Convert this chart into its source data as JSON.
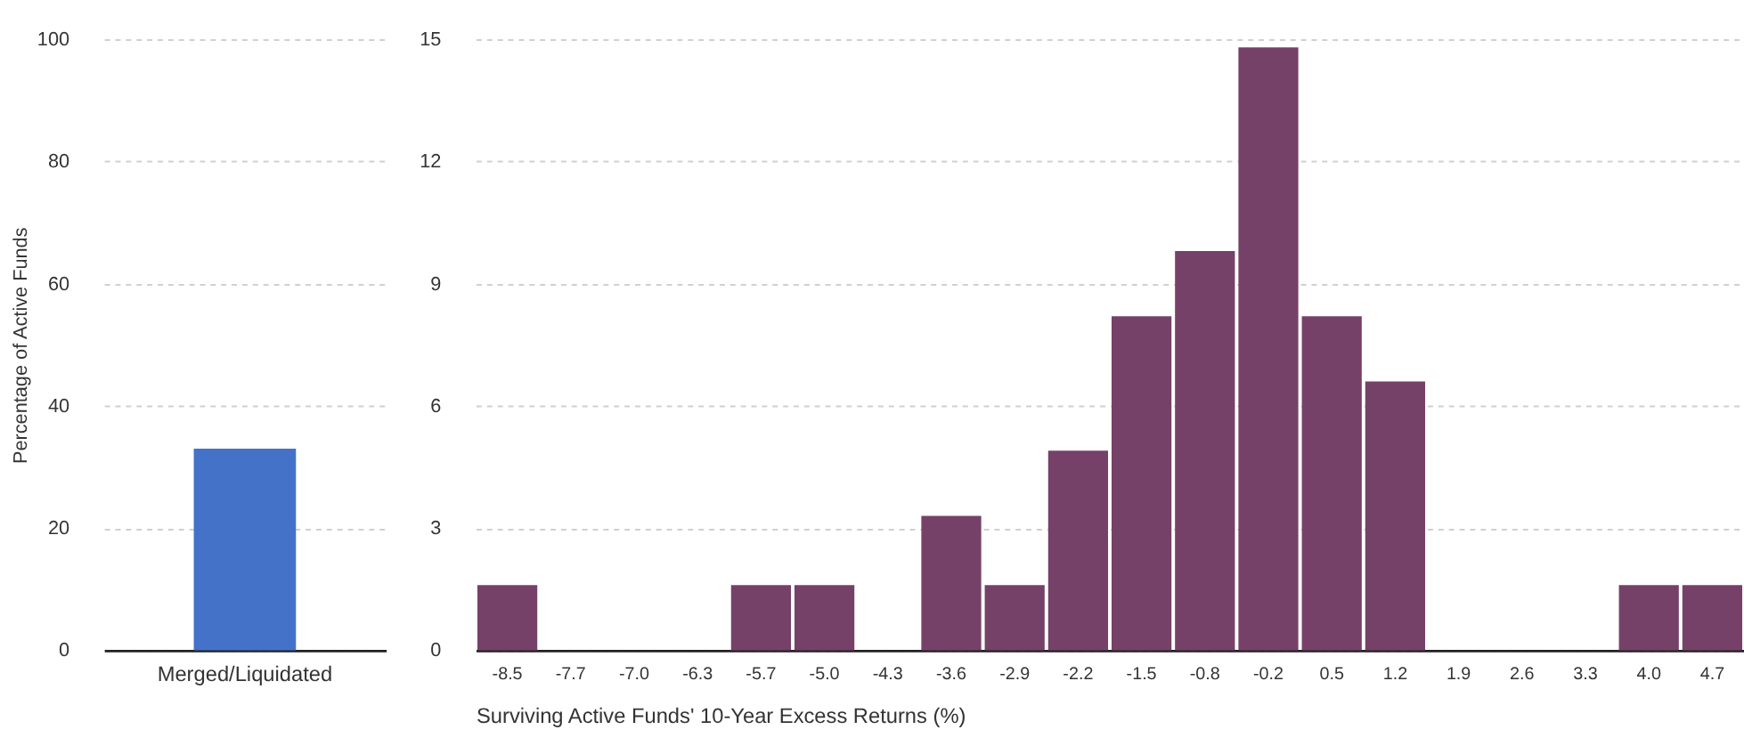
{
  "chart_data": [
    {
      "type": "bar",
      "categories": [
        "Merged/Liquidated"
      ],
      "values": [
        33
      ],
      "color": "#4472c8",
      "ylim": [
        0,
        100
      ],
      "yticks": [
        0,
        20,
        40,
        60,
        80,
        100
      ],
      "grid": "y",
      "ylabel": "Percentage of Active Funds"
    },
    {
      "type": "bar",
      "categories": [
        "-8.5",
        "-7.7",
        "-7.0",
        "-6.3",
        "-5.7",
        "-5.0",
        "-4.3",
        "-3.6",
        "-2.9",
        "-2.2",
        "-1.5",
        "-0.8",
        "-0.2",
        "0.5",
        "1.2",
        "1.9",
        "2.6",
        "3.3",
        "4.0",
        "4.7"
      ],
      "values": [
        1.6,
        0,
        0,
        0,
        1.6,
        1.6,
        0,
        3.3,
        1.6,
        4.9,
        8.2,
        9.8,
        14.8,
        8.2,
        6.6,
        0,
        0,
        0,
        1.6,
        1.6
      ],
      "color": "#764168",
      "ylim": [
        0,
        15
      ],
      "yticks": [
        0,
        3,
        6,
        9,
        12,
        15
      ],
      "grid": "y",
      "xlabel": "Surviving Active Funds' 10-Year Excess Returns (%)"
    }
  ]
}
